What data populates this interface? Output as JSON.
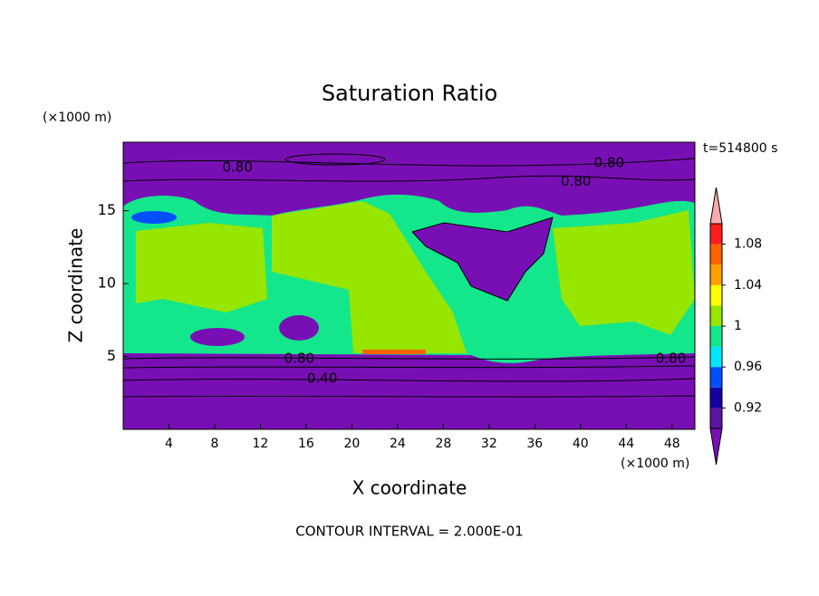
{
  "chart_data": {
    "type": "contour",
    "title": "Saturation Ratio",
    "x_label": "X coordinate",
    "y_label": "Z coordinate",
    "x_unit": "(×1000 m)",
    "y_unit": "(×1000 m)",
    "time_label": "t=514800 s",
    "footer": "CONTOUR INTERVAL = 2.000E-01",
    "xlim": [
      0,
      50
    ],
    "xticks": [
      4,
      8,
      12,
      16,
      20,
      24,
      28,
      32,
      36,
      40,
      44,
      48
    ],
    "ylim": [
      0,
      19.7
    ],
    "yticks": [
      5,
      10,
      15
    ],
    "colorbar": {
      "levels": [
        0.9,
        0.92,
        0.94,
        0.96,
        0.98,
        1,
        1.02,
        1.04,
        1.06,
        1.08,
        1.1
      ],
      "colors": [
        "#5a14a0",
        "#1400a0",
        "#0050ff",
        "#00e6ff",
        "#14e68c",
        "#96e600",
        "#ffff00",
        "#ffa000",
        "#ff6400",
        "#ff1e1e"
      ],
      "under_color": "#780fb4",
      "over_color": "#ffaaaa",
      "ticks": [
        0.92,
        0.96,
        1,
        1.04,
        1.08
      ]
    },
    "contour_labels": [
      {
        "value": 0.8,
        "label": "0.80",
        "x": 10.0,
        "z": 17.95
      },
      {
        "value": 0.8,
        "label": "0.80",
        "x": 42.5,
        "z": 18.27
      },
      {
        "value": 0.8,
        "label": "0.80",
        "x": 39.6,
        "z": 17.0
      },
      {
        "value": 0.8,
        "label": "0.80",
        "x": 15.4,
        "z": 4.86
      },
      {
        "value": 0.4,
        "label": "0.40",
        "x": 17.4,
        "z": 3.49
      },
      {
        "value": 0.8,
        "label": "0.80",
        "x": 47.9,
        "z": 4.86
      }
    ]
  }
}
